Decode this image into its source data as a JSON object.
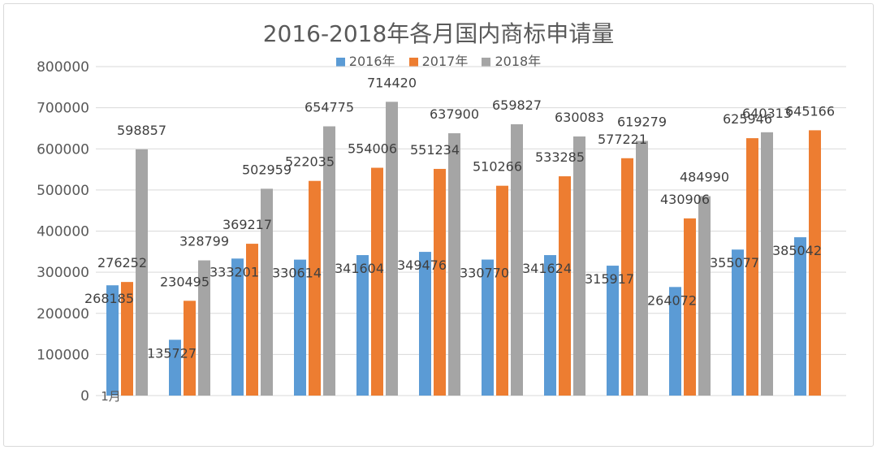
{
  "colors": {
    "s2016": "#5b9bd5",
    "s2017": "#ed7d31",
    "s2018": "#a5a5a5",
    "grid": "#d9d9d9"
  },
  "chart_data": {
    "type": "bar",
    "title": "2016-2018年各月国内商标申请量",
    "legend_position": "top",
    "grid": true,
    "ylim": [
      0,
      800000
    ],
    "yticks": [
      "0",
      "100000",
      "200000",
      "300000",
      "400000",
      "500000",
      "600000",
      "700000",
      "800000"
    ],
    "categories": [
      "1月",
      "",
      "",
      "",
      "",
      "",
      "",
      "",
      "",
      "",
      "",
      ""
    ],
    "series": [
      {
        "name": "2016年",
        "values": [
          268185,
          135727,
          333201,
          330614,
          341604,
          349476,
          330770,
          341624,
          315917,
          264072,
          355077,
          385042
        ]
      },
      {
        "name": "2017年",
        "values": [
          276252,
          230495,
          369217,
          522035,
          554006,
          551234,
          510266,
          533285,
          577221,
          430906,
          625946,
          645166
        ]
      },
      {
        "name": "2018年",
        "values": [
          598857,
          328799,
          502959,
          654775,
          714420,
          637900,
          659827,
          630083,
          619279,
          484990,
          640313,
          null
        ]
      }
    ]
  }
}
